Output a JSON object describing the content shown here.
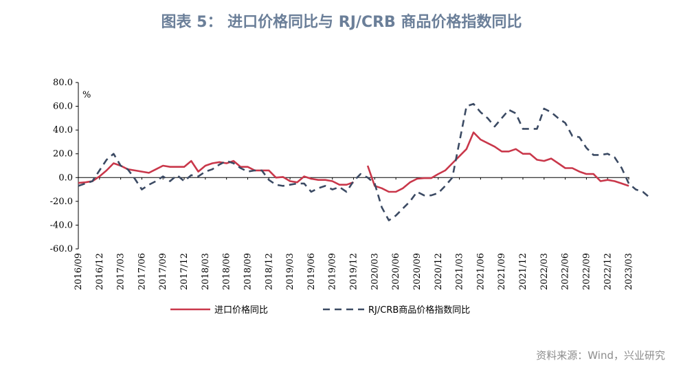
{
  "title": "图表 5：  进口价格同比与 RJ/CRB 商品价格指数同比",
  "source": "资料来源：Wind，兴业研究",
  "chart_data": {
    "type": "line",
    "ylabel": "%",
    "ylim": [
      -60,
      80
    ],
    "yticks": [
      "80.0",
      "60.0",
      "40.0",
      "20.0",
      "0.0",
      "-20.0",
      "-40.0",
      "-60.0"
    ],
    "xtick_labels": [
      "2016/09",
      "2016/12",
      "2017/03",
      "2017/06",
      "2017/09",
      "2017/12",
      "2018/03",
      "2018/06",
      "2018/09",
      "2018/12",
      "2019/03",
      "2019/06",
      "2019/09",
      "2019/12",
      "2020/03",
      "2020/06",
      "2020/09",
      "2020/12",
      "2021/03",
      "2021/06",
      "2021/09",
      "2021/12",
      "2022/03",
      "2022/06",
      "2022/09",
      "2022/12",
      "2023/03"
    ],
    "x_start": "2016/09",
    "legend": "bottom",
    "series": [
      {
        "name": "进口价格同比",
        "color": "#c9374a",
        "style": "solid",
        "values": [
          -4.5,
          -4,
          -3,
          1,
          6,
          12,
          10,
          7,
          6,
          5,
          4,
          7,
          10,
          9,
          9,
          9,
          14,
          5,
          10,
          12,
          13,
          12,
          14,
          9,
          9,
          6,
          6,
          6,
          0,
          0.5,
          -3,
          -4,
          1,
          -1,
          -2,
          -2,
          -3,
          -6,
          -6,
          -4,
          null,
          10,
          -7,
          -9,
          -12,
          -12,
          -9,
          -4,
          -1,
          -0.5,
          -0.5,
          3,
          6,
          12,
          18,
          24,
          38,
          32,
          29,
          26,
          22,
          22,
          24,
          20,
          20,
          15,
          14,
          16,
          12,
          8,
          8,
          5,
          3,
          3,
          -3,
          -2,
          -3,
          -5,
          -7
        ]
      },
      {
        "name": "RJ/CRB商品价格指数同比",
        "color": "#3b4a63",
        "style": "dashed",
        "values": [
          -7,
          -5,
          -3,
          6,
          15,
          20,
          10,
          7,
          -1,
          -10,
          -6,
          -3,
          1,
          -3,
          2,
          -3,
          2,
          1,
          5,
          7,
          11,
          14,
          12,
          8,
          5,
          6,
          6,
          -2,
          -6,
          -7,
          -6,
          -5,
          -5,
          -12,
          -9,
          -7,
          -10,
          -8,
          -12,
          -3,
          3,
          0,
          -5,
          -25,
          -36,
          -32,
          -26,
          -20,
          -12,
          -15,
          -15,
          -13,
          -7,
          0,
          30,
          60,
          62,
          55,
          50,
          43,
          50,
          57,
          54,
          41,
          41,
          41,
          58,
          55,
          50,
          46,
          35,
          34,
          25,
          19,
          19,
          20,
          17,
          8,
          -5,
          -10,
          -12,
          -17
        ]
      }
    ]
  }
}
